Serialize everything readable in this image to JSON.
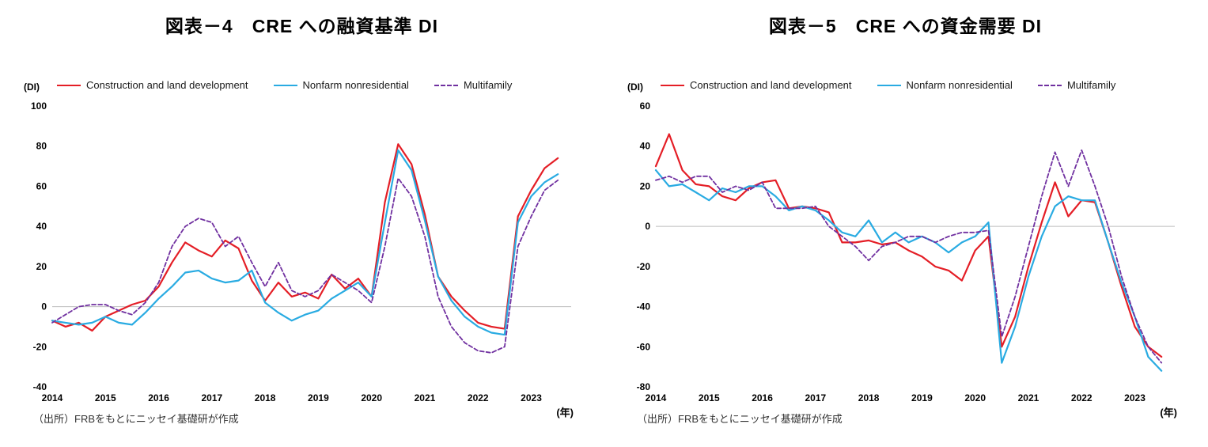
{
  "colors": {
    "red": "#e41e26",
    "cyan": "#29abe2",
    "purple": "#7030a0",
    "zero_line": "#bdbdbd",
    "text": "#000000"
  },
  "chart_data": [
    {
      "type": "line",
      "title": "図表－4　CRE への融資基準 DI",
      "unit_label": "(DI)",
      "x_axis_label": "(年)",
      "source_note": "（出所）FRBをもとにニッセイ基礎研が作成",
      "x_start": 2014,
      "x_step": 0.25,
      "xlim": [
        2014,
        2023.75
      ],
      "x_ticks": [
        2014,
        2015,
        2016,
        2017,
        2018,
        2019,
        2020,
        2021,
        2022,
        2023
      ],
      "ylim": [
        -40,
        100
      ],
      "y_ticks": [
        100,
        80,
        60,
        40,
        20,
        0,
        -20,
        -40
      ],
      "zero_line": true,
      "legend_position": "top",
      "grid": false,
      "series": [
        {
          "name": "Construction and land development",
          "color": "red",
          "dash": false,
          "width": 2.2,
          "values": [
            -7,
            -10,
            -8,
            -12,
            -5,
            -2,
            1,
            3,
            10,
            22,
            32,
            28,
            25,
            33,
            29,
            13,
            3,
            12,
            5,
            7,
            4,
            16,
            9,
            14,
            5,
            52,
            81,
            71,
            46,
            15,
            5,
            -2,
            -8,
            -10,
            -11,
            45,
            58,
            69,
            74
          ]
        },
        {
          "name": "Nonfarm nonresidential",
          "color": "cyan",
          "dash": false,
          "width": 2.2,
          "values": [
            -7,
            -8,
            -9,
            -8,
            -5,
            -8,
            -9,
            -3,
            4,
            10,
            17,
            18,
            14,
            12,
            13,
            18,
            2,
            -3,
            -7,
            -4,
            -2,
            4,
            8,
            12,
            5,
            42,
            78,
            68,
            43,
            15,
            3,
            -5,
            -10,
            -13,
            -14,
            42,
            55,
            62,
            66
          ]
        },
        {
          "name": "Multifamily",
          "color": "purple",
          "dash": true,
          "width": 1.8,
          "values": [
            -8,
            -4,
            0,
            1,
            1,
            -2,
            -4,
            2,
            12,
            30,
            40,
            44,
            42,
            30,
            35,
            22,
            10,
            22,
            8,
            5,
            8,
            16,
            12,
            8,
            2,
            30,
            64,
            55,
            35,
            5,
            -10,
            -18,
            -22,
            -23,
            -20,
            30,
            45,
            58,
            63
          ]
        }
      ]
    },
    {
      "type": "line",
      "title": "図表－5　CRE への資金需要 DI",
      "unit_label": "(DI)",
      "x_axis_label": "(年)",
      "source_note": "（出所）FRBをもとにニッセイ基礎研が作成",
      "x_start": 2014,
      "x_step": 0.25,
      "xlim": [
        2014,
        2023.75
      ],
      "x_ticks": [
        2014,
        2015,
        2016,
        2017,
        2018,
        2019,
        2020,
        2021,
        2022,
        2023
      ],
      "ylim": [
        -80,
        60
      ],
      "y_ticks": [
        60,
        40,
        20,
        0,
        -20,
        -40,
        -60,
        -80
      ],
      "zero_line": true,
      "legend_position": "top",
      "grid": false,
      "series": [
        {
          "name": "Construction and land development",
          "color": "red",
          "dash": false,
          "width": 2.2,
          "values": [
            30,
            46,
            28,
            21,
            20,
            15,
            13,
            19,
            22,
            23,
            9,
            10,
            9,
            7,
            -8,
            -8,
            -7,
            -9,
            -8,
            -12,
            -15,
            -20,
            -22,
            -27,
            -12,
            -5,
            -60,
            -45,
            -20,
            2,
            22,
            5,
            13,
            12,
            -8,
            -30,
            -50,
            -60,
            -65
          ]
        },
        {
          "name": "Nonfarm nonresidential",
          "color": "cyan",
          "dash": false,
          "width": 2.2,
          "values": [
            28,
            20,
            21,
            17,
            13,
            19,
            17,
            20,
            20,
            15,
            8,
            10,
            8,
            3,
            -3,
            -5,
            3,
            -8,
            -3,
            -8,
            -5,
            -8,
            -13,
            -8,
            -5,
            2,
            -68,
            -50,
            -25,
            -5,
            10,
            15,
            13,
            13,
            -8,
            -28,
            -45,
            -65,
            -72
          ]
        },
        {
          "name": "Multifamily",
          "color": "purple",
          "dash": true,
          "width": 1.8,
          "values": [
            23,
            25,
            22,
            25,
            25,
            17,
            20,
            18,
            22,
            9,
            9,
            9,
            10,
            0,
            -5,
            -10,
            -17,
            -10,
            -8,
            -5,
            -5,
            -8,
            -5,
            -3,
            -3,
            -2,
            -55,
            -35,
            -10,
            15,
            37,
            20,
            38,
            20,
            0,
            -25,
            -45,
            -60,
            -68
          ]
        }
      ]
    }
  ]
}
